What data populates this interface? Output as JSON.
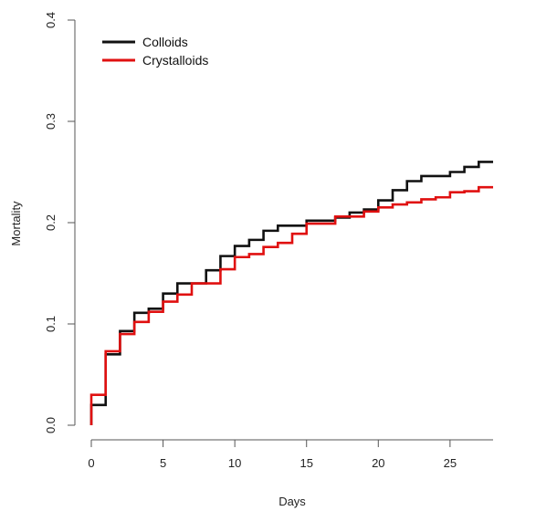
{
  "chart_data": {
    "type": "line",
    "step": true,
    "title": "",
    "xlabel": "Days",
    "ylabel": "Mortality",
    "xlim": [
      0,
      28
    ],
    "ylim": [
      0,
      0.4
    ],
    "x_ticks": [
      0,
      5,
      10,
      15,
      20,
      25
    ],
    "x_tick_labels": [
      "0",
      "5",
      "10",
      "15",
      "20",
      "25"
    ],
    "y_ticks": [
      0,
      0.1,
      0.2,
      0.3,
      0.4
    ],
    "y_tick_labels": [
      "0.0",
      "0.1",
      "0.2",
      "0.3",
      "0.4"
    ],
    "grid": false,
    "legend_position": "top-left",
    "series": [
      {
        "name": "Colloids",
        "color": "#111111",
        "x": [
          0,
          1,
          2,
          3,
          4,
          5,
          6,
          7,
          8,
          9,
          10,
          11,
          12,
          13,
          14,
          15,
          16,
          17,
          18,
          19,
          20,
          21,
          22,
          23,
          24,
          25,
          26,
          27,
          28
        ],
        "y": [
          0.02,
          0.07,
          0.093,
          0.111,
          0.115,
          0.13,
          0.14,
          0.14,
          0.153,
          0.167,
          0.177,
          0.183,
          0.192,
          0.197,
          0.197,
          0.202,
          0.202,
          0.205,
          0.21,
          0.213,
          0.222,
          0.232,
          0.241,
          0.246,
          0.246,
          0.25,
          0.255,
          0.26,
          0.26
        ]
      },
      {
        "name": "Crystalloids",
        "color": "#e01010",
        "x": [
          0,
          1,
          2,
          3,
          4,
          5,
          6,
          7,
          8,
          9,
          10,
          11,
          12,
          13,
          14,
          15,
          16,
          17,
          18,
          19,
          20,
          21,
          22,
          23,
          24,
          25,
          26,
          27,
          28
        ],
        "y": [
          0.03,
          0.073,
          0.09,
          0.102,
          0.112,
          0.122,
          0.129,
          0.14,
          0.14,
          0.154,
          0.166,
          0.169,
          0.176,
          0.18,
          0.189,
          0.199,
          0.199,
          0.206,
          0.206,
          0.211,
          0.215,
          0.218,
          0.22,
          0.223,
          0.225,
          0.23,
          0.231,
          0.235,
          0.235
        ]
      }
    ]
  }
}
